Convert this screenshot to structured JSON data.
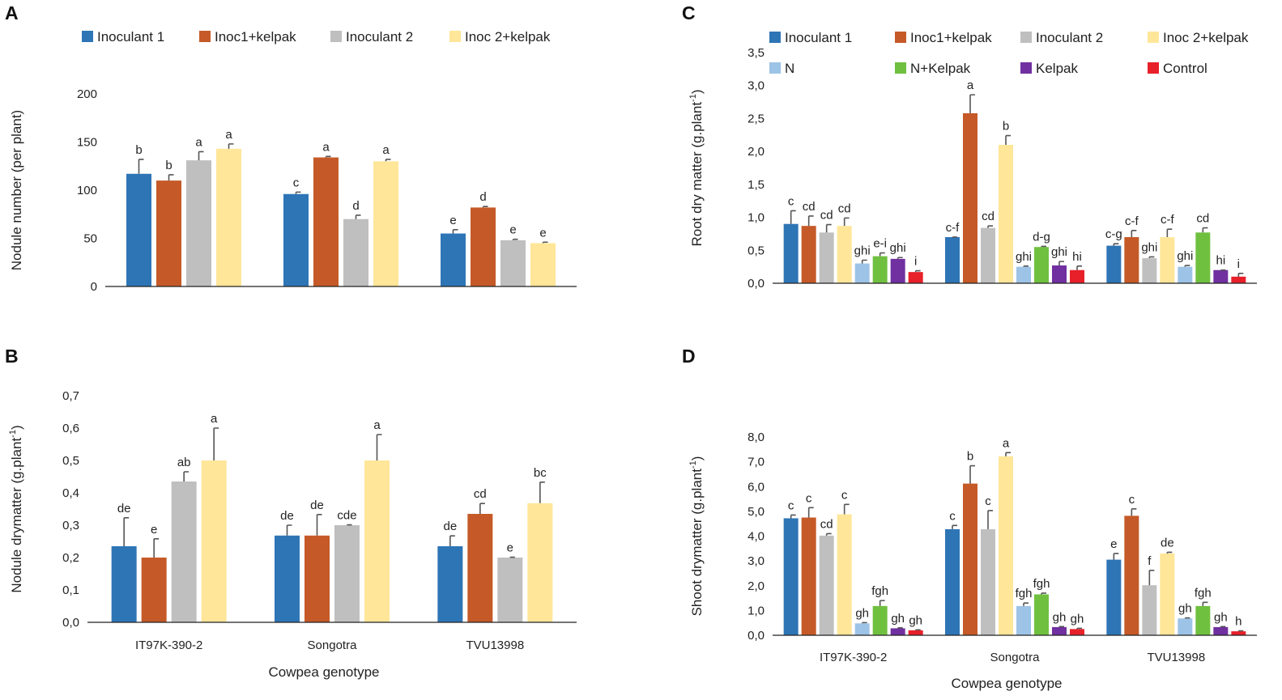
{
  "colors": {
    "Inoculant 1": "#2e75b6",
    "Inoc1+kelpak": "#c55a28",
    "Inoculant 2": "#bfbfbf",
    "Inoc 2+kelpak": "#ffe699",
    "N": "#9dc3e6",
    "N+Kelpak": "#70c040",
    "Kelpak": "#7030a0",
    "Control": "#e8202a"
  },
  "chart_data": [
    {
      "panel": "A",
      "type": "bar",
      "title": "",
      "categories": [
        "IT97K-390-2",
        "Songotra",
        "TVU13998"
      ],
      "show_category_labels": false,
      "xlabel": "",
      "ylabel": "Nodule number (per plant)",
      "ylabel_sup": "",
      "ylim": [
        0,
        200
      ],
      "yticks": [
        0,
        50,
        100,
        150,
        200
      ],
      "ytick_labels": [
        "0",
        "50",
        "100",
        "150",
        "200"
      ],
      "legend": [
        "Inoculant 1",
        "Inoc1+kelpak",
        "Inoculant 2",
        "Inoc 2+kelpak"
      ],
      "legend_columns": 4,
      "series": [
        {
          "name": "Inoculant 1",
          "values": [
            117,
            96,
            55
          ],
          "errors": [
            15,
            2,
            4
          ],
          "labels": [
            "b",
            "c",
            "e"
          ]
        },
        {
          "name": "Inoc1+kelpak",
          "values": [
            110,
            134,
            82
          ],
          "errors": [
            6,
            1,
            1
          ],
          "labels": [
            "b",
            "a",
            "d"
          ]
        },
        {
          "name": "Inoculant 2",
          "values": [
            131,
            70,
            48
          ],
          "errors": [
            9,
            4,
            1
          ],
          "labels": [
            "a",
            "d",
            "e"
          ]
        },
        {
          "name": "Inoc 2+kelpak",
          "values": [
            143,
            130,
            45
          ],
          "errors": [
            5,
            2,
            1
          ],
          "labels": [
            "a",
            "a",
            "e"
          ]
        }
      ]
    },
    {
      "panel": "B",
      "type": "bar",
      "title": "",
      "categories": [
        "IT97K-390-2",
        "Songotra",
        "TVU13998"
      ],
      "show_category_labels": true,
      "xlabel": "Cowpea genotype",
      "ylabel": "Nodule drymatter (g.plant",
      "ylabel_sup": "-1",
      "ylim": [
        0,
        0.7
      ],
      "yticks": [
        0,
        0.1,
        0.2,
        0.3,
        0.4,
        0.5,
        0.6,
        0.7
      ],
      "ytick_labels": [
        "0,0",
        "0,1",
        "0,2",
        "0,3",
        "0,4",
        "0,5",
        "0,6",
        "0,7"
      ],
      "legend": [],
      "legend_columns": 4,
      "series": [
        {
          "name": "Inoculant 1",
          "values": [
            0.235,
            0.268,
            0.235
          ],
          "errors": [
            0.088,
            0.032,
            0.032
          ],
          "labels": [
            "de",
            "de",
            "de"
          ]
        },
        {
          "name": "Inoc1+kelpak",
          "values": [
            0.2,
            0.268,
            0.335
          ],
          "errors": [
            0.058,
            0.065,
            0.032
          ],
          "labels": [
            "e",
            "de",
            "cd"
          ]
        },
        {
          "name": "Inoculant 2",
          "values": [
            0.435,
            0.3,
            0.2
          ],
          "errors": [
            0.03,
            0.001,
            0.001
          ],
          "labels": [
            "ab",
            "cde",
            "e"
          ]
        },
        {
          "name": "Inoc 2+kelpak",
          "values": [
            0.5,
            0.5,
            0.368
          ],
          "errors": [
            0.1,
            0.08,
            0.065
          ],
          "labels": [
            "a",
            "a",
            "bc"
          ]
        }
      ]
    },
    {
      "panel": "C",
      "type": "bar",
      "title": "",
      "categories": [
        "IT97K-390-2",
        "Songotra",
        "TVU13998"
      ],
      "show_category_labels": false,
      "xlabel": "",
      "ylabel": "Root dry matter (g.plant",
      "ylabel_sup": "-1",
      "ylim": [
        0,
        3.5
      ],
      "yticks": [
        0,
        0.5,
        1,
        1.5,
        2,
        2.5,
        3,
        3.5
      ],
      "ytick_labels": [
        "0,0",
        "0,5",
        "1,0",
        "1,5",
        "2,0",
        "2,5",
        "3,0",
        "3,5"
      ],
      "legend": [
        "Inoculant 1",
        "Inoc1+kelpak",
        "Inoculant 2",
        "Inoc 2+kelpak",
        "N",
        "N+Kelpak",
        "Kelpak",
        "Control"
      ],
      "legend_columns": 4,
      "series": [
        {
          "name": "Inoculant 1",
          "values": [
            0.9,
            0.7,
            0.57
          ],
          "errors": [
            0.2,
            0.0,
            0.03
          ],
          "labels": [
            "c",
            "c-f",
            "c-g"
          ]
        },
        {
          "name": "Inoc1+kelpak",
          "values": [
            0.87,
            2.58,
            0.7
          ],
          "errors": [
            0.15,
            0.28,
            0.1
          ],
          "labels": [
            "cd",
            "a",
            "c-f"
          ]
        },
        {
          "name": "Inoculant 2",
          "values": [
            0.77,
            0.84,
            0.38
          ],
          "errors": [
            0.12,
            0.03,
            0.02
          ],
          "labels": [
            "cd",
            "cd",
            "ghi"
          ]
        },
        {
          "name": "Inoc 2+kelpak",
          "values": [
            0.87,
            2.1,
            0.7
          ],
          "errors": [
            0.12,
            0.14,
            0.12
          ],
          "labels": [
            "cd",
            "b",
            "c-f"
          ]
        },
        {
          "name": "N",
          "values": [
            0.3,
            0.25,
            0.25
          ],
          "errors": [
            0.05,
            0.01,
            0.02
          ],
          "labels": [
            "ghi",
            "ghi",
            "ghi"
          ]
        },
        {
          "name": "N+Kelpak",
          "values": [
            0.41,
            0.55,
            0.77
          ],
          "errors": [
            0.05,
            0.01,
            0.07
          ],
          "labels": [
            "e-i",
            "d-g",
            "cd"
          ]
        },
        {
          "name": "Kelpak",
          "values": [
            0.37,
            0.27,
            0.2
          ],
          "errors": [
            0.02,
            0.06,
            0.0
          ],
          "labels": [
            "ghi",
            "ghi",
            "hi"
          ]
        },
        {
          "name": "Control",
          "values": [
            0.17,
            0.2,
            0.1
          ],
          "errors": [
            0.02,
            0.06,
            0.05
          ],
          "labels": [
            "i",
            "hi",
            "i"
          ]
        }
      ]
    },
    {
      "panel": "D",
      "type": "bar",
      "title": "",
      "categories": [
        "IT97K-390-2",
        "Songotra",
        "TVU13998"
      ],
      "show_category_labels": true,
      "xlabel": "Cowpea genotype",
      "ylabel": "Shoot drymatter (g.plant",
      "ylabel_sup": "-1",
      "ylim": [
        0,
        8
      ],
      "yticks": [
        0,
        1,
        2,
        3,
        4,
        5,
        6,
        7,
        8
      ],
      "ytick_labels": [
        "0,0",
        "1,0",
        "2,0",
        "3,0",
        "4,0",
        "5,0",
        "6,0",
        "7,0",
        "8,0"
      ],
      "legend": [],
      "legend_columns": 4,
      "series": [
        {
          "name": "Inoculant 1",
          "values": [
            4.72,
            4.28,
            3.05
          ],
          "errors": [
            0.13,
            0.15,
            0.25
          ],
          "labels": [
            "c",
            "c",
            "e"
          ]
        },
        {
          "name": "Inoc1+kelpak",
          "values": [
            4.75,
            6.12,
            4.82
          ],
          "errors": [
            0.4,
            0.72,
            0.28
          ],
          "labels": [
            "c",
            "b",
            "c"
          ]
        },
        {
          "name": "Inoculant 2",
          "values": [
            4.02,
            4.28,
            2.02
          ],
          "errors": [
            0.08,
            0.75,
            0.6
          ],
          "labels": [
            "cd",
            "c",
            "f"
          ]
        },
        {
          "name": "Inoc 2+kelpak",
          "values": [
            4.88,
            7.22,
            3.3
          ],
          "errors": [
            0.4,
            0.15,
            0.05
          ],
          "labels": [
            "c",
            "a",
            "de"
          ]
        },
        {
          "name": "N",
          "values": [
            0.48,
            1.18,
            0.68
          ],
          "errors": [
            0.03,
            0.12,
            0.02
          ],
          "labels": [
            "gh",
            "fgh",
            "gh"
          ]
        },
        {
          "name": "N+Kelpak",
          "values": [
            1.18,
            1.65,
            1.18
          ],
          "errors": [
            0.22,
            0.05,
            0.15
          ],
          "labels": [
            "fgh",
            "fgh",
            "fgh"
          ]
        },
        {
          "name": "Kelpak",
          "values": [
            0.28,
            0.33,
            0.33
          ],
          "errors": [
            0.02,
            0.02,
            0.02
          ],
          "labels": [
            "gh",
            "gh",
            "gh"
          ]
        },
        {
          "name": "Control",
          "values": [
            0.2,
            0.25,
            0.16
          ],
          "errors": [
            0.02,
            0.03,
            0.02
          ],
          "labels": [
            "gh",
            "gh",
            "h"
          ]
        }
      ]
    }
  ]
}
